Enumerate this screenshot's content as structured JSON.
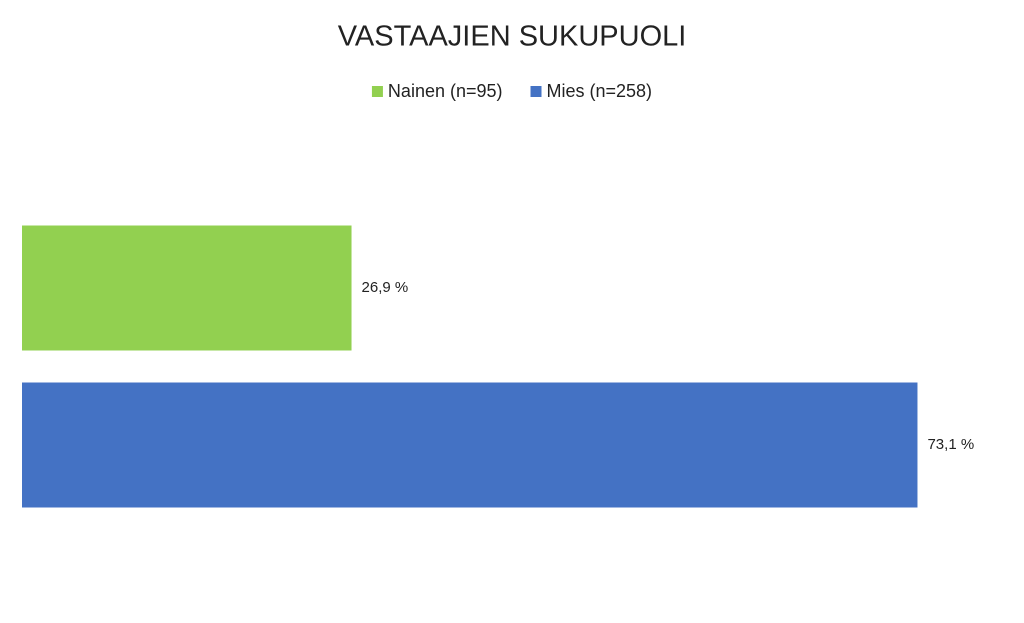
{
  "chart_data": {
    "type": "bar",
    "orientation": "horizontal",
    "title": "VASTAAJIEN SUKUPUOLI",
    "categories": [
      null
    ],
    "series": [
      {
        "name": "Nainen (n=95)",
        "color": "#92d050",
        "values": [
          26.9
        ],
        "value_labels": [
          "26,9 %"
        ]
      },
      {
        "name": "Mies (n=258)",
        "color": "#4472c4",
        "values": [
          73.1
        ],
        "value_labels": [
          "73,1 %"
        ]
      }
    ],
    "xlim": [
      0,
      80
    ],
    "legend": "top"
  }
}
